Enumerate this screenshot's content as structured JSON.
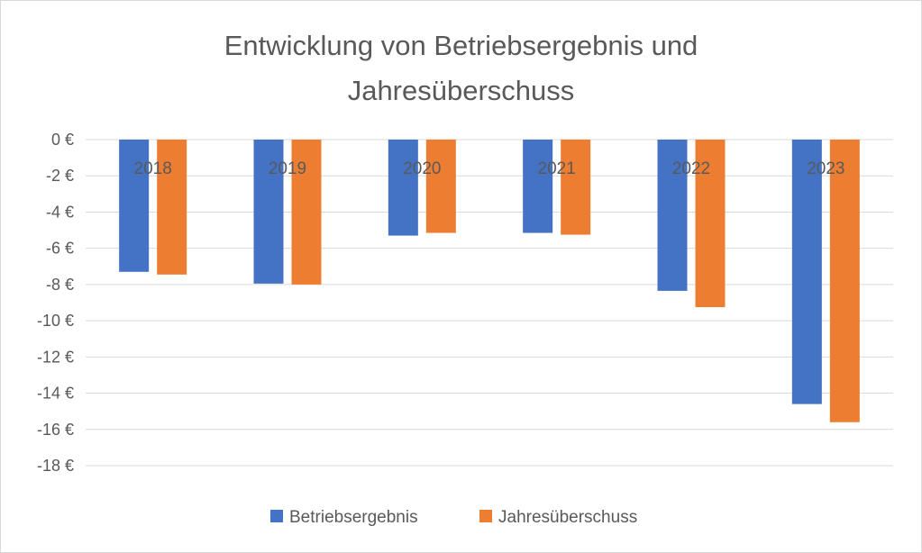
{
  "chart_data": {
    "type": "bar",
    "title": "Entwicklung von Betriebsergebnis und Jahresüberschuss",
    "title_lines": [
      "Entwicklung von Betriebsergebnis und",
      "Jahresüberschuss"
    ],
    "categories": [
      "2018",
      "2019",
      "2020",
      "2021",
      "2022",
      "2023"
    ],
    "series": [
      {
        "name": "Betriebsergebnis",
        "color": "#4472c4",
        "values": [
          -7.3,
          -7.95,
          -5.3,
          -5.15,
          -8.35,
          -14.6
        ]
      },
      {
        "name": "Jahresüberschuss",
        "color": "#ed7d31",
        "values": [
          -7.45,
          -8.0,
          -5.15,
          -5.25,
          -9.25,
          -15.6
        ]
      }
    ],
    "ylim": [
      -18,
      0
    ],
    "yticks": [
      0,
      -2,
      -4,
      -6,
      -8,
      -10,
      -12,
      -14,
      -16,
      -18
    ],
    "ytick_labels": [
      "0 €",
      "-2 €",
      "-4 €",
      "-6 €",
      "-8 €",
      "-10 €",
      "-12 €",
      "-14 €",
      "-16 €",
      "-18 €"
    ],
    "xlabel": "",
    "ylabel": "",
    "grid": true,
    "legend_position": "bottom"
  }
}
